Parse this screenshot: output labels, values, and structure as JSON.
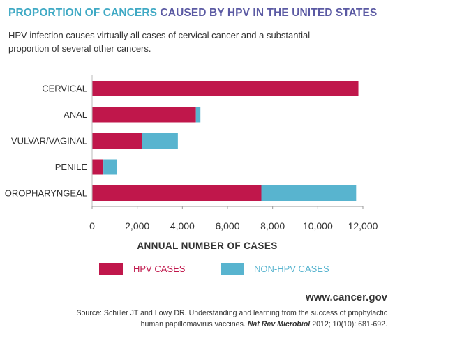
{
  "header": {
    "title_part1": "PROPORTION OF CANCERS",
    "title_part2": "CAUSED BY HPV IN THE UNITED STATES",
    "subtitle": "HPV infection causes virtually all cases of cervical cancer and a substantial proportion of several other cancers."
  },
  "chart_data": {
    "type": "bar",
    "orientation": "horizontal",
    "stacked": true,
    "categories": [
      "CERVICAL",
      "ANAL",
      "VULVAR/VAGINAL",
      "PENILE",
      "OROPHARYNGEAL"
    ],
    "series": [
      {
        "name": "HPV CASES",
        "color": "#c0174b",
        "values": [
          11800,
          4600,
          2200,
          500,
          7500
        ]
      },
      {
        "name": "NON-HPV CASES",
        "color": "#58b4cf",
        "values": [
          0,
          200,
          1600,
          600,
          4200
        ]
      }
    ],
    "xlabel": "ANNUAL NUMBER OF CASES",
    "xlim": [
      0,
      12000
    ],
    "xticks": [
      0,
      2000,
      4000,
      6000,
      8000,
      10000,
      12000
    ],
    "xtick_labels": [
      "0",
      "2,000",
      "4,000",
      "6,000",
      "8,000",
      "10,000",
      "12,000"
    ],
    "grid": false,
    "legend_position": "bottom"
  },
  "footer": {
    "url": "www.cancer.gov",
    "source_line1": "Source: Schiller JT and Lowy DR. Understanding and learning from the success of prophylactic",
    "source_line2_pre": "human papillomavirus vaccines.",
    "source_journal": "Nat Rev Microbiol",
    "source_line2_post": "2012; 10(10): 681-692."
  }
}
